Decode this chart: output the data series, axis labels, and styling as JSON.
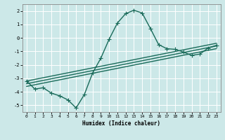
{
  "title": "",
  "xlabel": "Humidex (Indice chaleur)",
  "bg_color": "#cce8e8",
  "grid_color": "#ffffff",
  "line_color": "#1a6b5a",
  "xlim": [
    -0.5,
    23.5
  ],
  "ylim": [
    -5.5,
    2.5
  ],
  "xticks": [
    0,
    1,
    2,
    3,
    4,
    5,
    6,
    7,
    8,
    9,
    10,
    11,
    12,
    13,
    14,
    15,
    16,
    17,
    18,
    19,
    20,
    21,
    22,
    23
  ],
  "yticks": [
    -5,
    -4,
    -3,
    -2,
    -1,
    0,
    1,
    2
  ],
  "main_x": [
    0,
    1,
    2,
    3,
    4,
    5,
    6,
    7,
    8,
    9,
    10,
    11,
    12,
    13,
    14,
    15,
    16,
    17,
    18,
    19,
    20,
    21,
    22,
    23
  ],
  "main_y": [
    -3.2,
    -3.8,
    -3.7,
    -4.1,
    -4.3,
    -4.6,
    -5.2,
    -4.2,
    -2.6,
    -1.5,
    -0.1,
    1.1,
    1.8,
    2.05,
    1.85,
    0.7,
    -0.5,
    -0.8,
    -0.85,
    -1.05,
    -1.3,
    -1.2,
    -0.75,
    -0.55
  ],
  "line1_x": [
    0,
    23
  ],
  "line1_y": [
    -3.4,
    -0.6
  ],
  "line2_x": [
    0,
    23
  ],
  "line2_y": [
    -3.6,
    -0.8
  ],
  "line3_x": [
    0,
    23
  ],
  "line3_y": [
    -3.2,
    -0.4
  ],
  "marker": "+",
  "markersize": 4,
  "linewidth": 1.0
}
